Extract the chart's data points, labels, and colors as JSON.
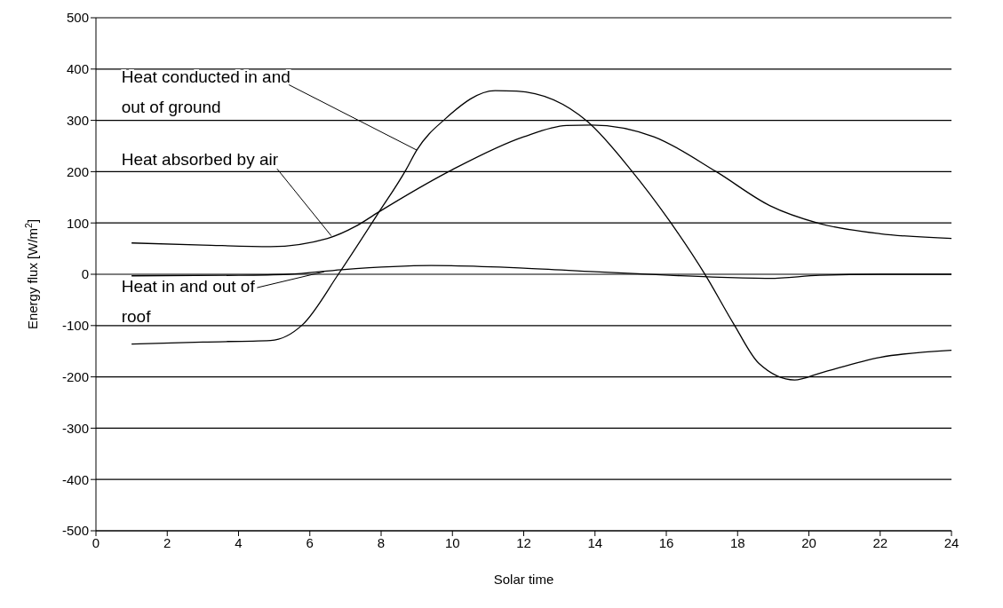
{
  "chart_data": {
    "type": "line",
    "xlabel": "Solar time",
    "ylabel": "Energy  flux [W/m$^{2}$]",
    "xlim": [
      0,
      24
    ],
    "xticks": [
      0,
      2,
      4,
      6,
      8,
      10,
      12,
      14,
      16,
      18,
      20,
      22,
      24
    ],
    "ylim": [
      -500,
      500
    ],
    "yticks": [
      -500,
      -400,
      -300,
      -200,
      -100,
      0,
      100,
      200,
      300,
      400,
      500
    ],
    "grid": "y",
    "marker": "none",
    "line_style": "solid",
    "series": [
      {
        "color": "#000000",
        "x": [
          1,
          3,
          4.9,
          5.8,
          6.8,
          7.9,
          8.7,
          9,
          9.8,
          11.2,
          11.8,
          13.8,
          15,
          16.1,
          17.1,
          17.9,
          18.6,
          19.6,
          20.3,
          22,
          24
        ],
        "values": [
          -136,
          -132,
          -129,
          -98,
          0,
          117,
          204,
          242,
          303,
          358,
          357,
          297,
          204,
          103,
          -2,
          -98,
          -174,
          -206,
          -193,
          -162,
          -148
        ]
      },
      {
        "color": "#000000",
        "x": [
          1,
          3,
          4.9,
          6.5,
          7.3,
          7.9,
          10,
          12,
          13.2,
          13.9,
          15.65,
          17.4,
          18.9,
          20.3,
          22,
          24
        ],
        "values": [
          61,
          57,
          54,
          70,
          94,
          120,
          204,
          268,
          290,
          291,
          268,
          200,
          134,
          99,
          79,
          70
        ]
      },
      {
        "color": "#000000",
        "x": [
          1,
          4,
          5.4,
          6.9,
          9.4,
          12,
          14,
          16.1,
          17.5,
          18.9,
          20.3,
          22,
          24
        ],
        "values": [
          -3,
          -2,
          0,
          9,
          17,
          12,
          5,
          -2,
          -6,
          -8,
          -2,
          0,
          0
        ]
      }
    ],
    "annotations": [
      {
        "text": "Heat conducted in and out of ground",
        "x": 9,
        "y": 242
      },
      {
        "text": "Heat absorbed by air",
        "x": 6.6,
        "y": 75
      },
      {
        "text": "Heat in and out of roof",
        "x": 6.4,
        "y": 5
      }
    ]
  }
}
